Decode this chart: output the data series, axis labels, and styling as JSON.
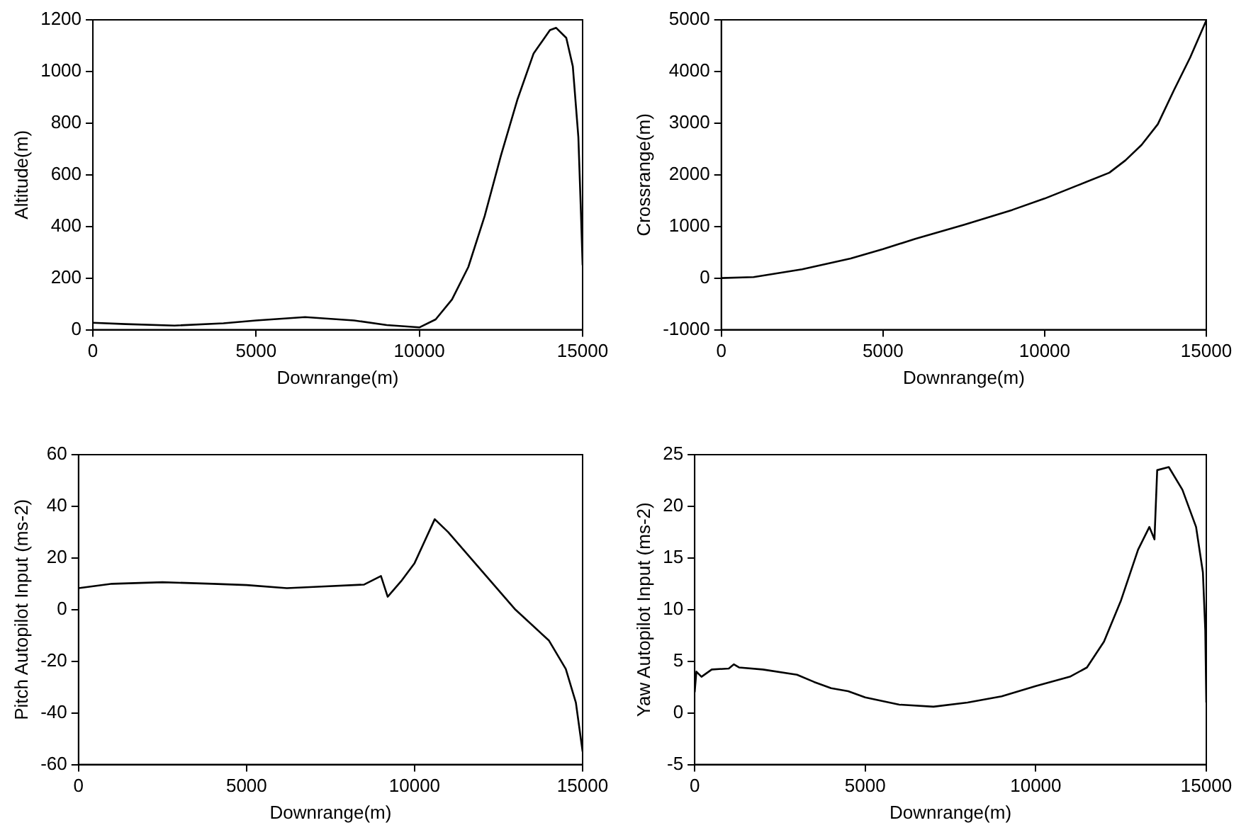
{
  "chart_data": [
    {
      "type": "line",
      "xlabel": "Downrange(m)",
      "ylabel": "Altitude(m)",
      "xlim": [
        0,
        15000
      ],
      "ylim": [
        0,
        1200
      ],
      "xticks": [
        0,
        5000,
        10000,
        15000
      ],
      "yticks": [
        0,
        200,
        400,
        600,
        800,
        1000,
        1200
      ],
      "series": [
        {
          "color": "#000000",
          "x": [
            0,
            1000,
            2500,
            4000,
            5000,
            6500,
            8000,
            9000,
            10000,
            10500,
            11000,
            11500,
            12000,
            12500,
            13000,
            13500,
            14000,
            14190,
            14500,
            14700,
            14870,
            14950,
            15000
          ],
          "values": [
            27,
            22,
            16,
            25,
            36,
            49,
            36,
            18,
            9,
            40,
            117,
            243,
            440,
            675,
            890,
            1070,
            1160,
            1169,
            1130,
            1020,
            746,
            450,
            250
          ]
        }
      ]
    },
    {
      "type": "line",
      "xlabel": "Downrange(m)",
      "ylabel": "Crossrange(m)",
      "xlim": [
        0,
        15000
      ],
      "ylim": [
        -1000,
        5000
      ],
      "xticks": [
        0,
        5000,
        10000,
        15000
      ],
      "yticks": [
        -1000,
        0,
        1000,
        2000,
        3000,
        4000,
        5000
      ],
      "series": [
        {
          "color": "#000000",
          "x": [
            0,
            1000,
            2500,
            4000,
            5000,
            6000,
            7500,
            9000,
            10000,
            11000,
            12000,
            12500,
            13000,
            13500,
            14000,
            14500,
            15000
          ],
          "values": [
            0,
            20,
            170,
            380,
            560,
            760,
            1030,
            1320,
            1540,
            1790,
            2040,
            2280,
            2580,
            2980,
            3640,
            4270,
            4990
          ]
        }
      ]
    },
    {
      "type": "line",
      "xlabel": "Downrange(m)",
      "ylabel": "Pitch Autopilot Input (ms-2)",
      "xlim": [
        0,
        15000
      ],
      "ylim": [
        -60,
        60
      ],
      "xticks": [
        0,
        5000,
        10000,
        15000
      ],
      "yticks": [
        -60,
        -40,
        -20,
        0,
        20,
        40,
        60
      ],
      "series": [
        {
          "color": "#000000",
          "x": [
            0,
            1000,
            2500,
            4000,
            5000,
            6200,
            7000,
            8500,
            9000,
            9200,
            9600,
            10000,
            10600,
            11000,
            12000,
            13000,
            14000,
            14500,
            14800,
            15000
          ],
          "values": [
            8.3,
            10,
            10.6,
            10,
            9.5,
            8.3,
            8.8,
            9.7,
            13,
            5,
            11,
            18,
            35,
            30,
            15,
            0,
            -12,
            -23,
            -36,
            -55
          ]
        }
      ]
    },
    {
      "type": "line",
      "xlabel": "Downrange(m)",
      "ylabel": "Yaw Autopilot Input (ms-2)",
      "xlim": [
        0,
        15000
      ],
      "ylim": [
        -5,
        25
      ],
      "xticks": [
        0,
        5000,
        10000,
        15000
      ],
      "yticks": [
        -5,
        0,
        5,
        10,
        15,
        20,
        25
      ],
      "series": [
        {
          "color": "#000000",
          "x": [
            0,
            50,
            200,
            500,
            1000,
            1150,
            1300,
            2000,
            3000,
            3500,
            4000,
            4500,
            5000,
            6000,
            7000,
            8000,
            9000,
            10000,
            11000,
            11500,
            12000,
            12500,
            13000,
            13330,
            13480,
            13560,
            13900,
            14300,
            14700,
            14900,
            14970,
            15000
          ],
          "values": [
            2,
            4,
            3.5,
            4.2,
            4.3,
            4.7,
            4.4,
            4.2,
            3.7,
            3,
            2.4,
            2.1,
            1.5,
            0.8,
            0.6,
            1,
            1.6,
            2.6,
            3.5,
            4.4,
            6.9,
            10.9,
            15.8,
            18,
            16.8,
            23.5,
            23.8,
            21.6,
            18,
            13.6,
            8,
            1
          ]
        }
      ]
    }
  ]
}
